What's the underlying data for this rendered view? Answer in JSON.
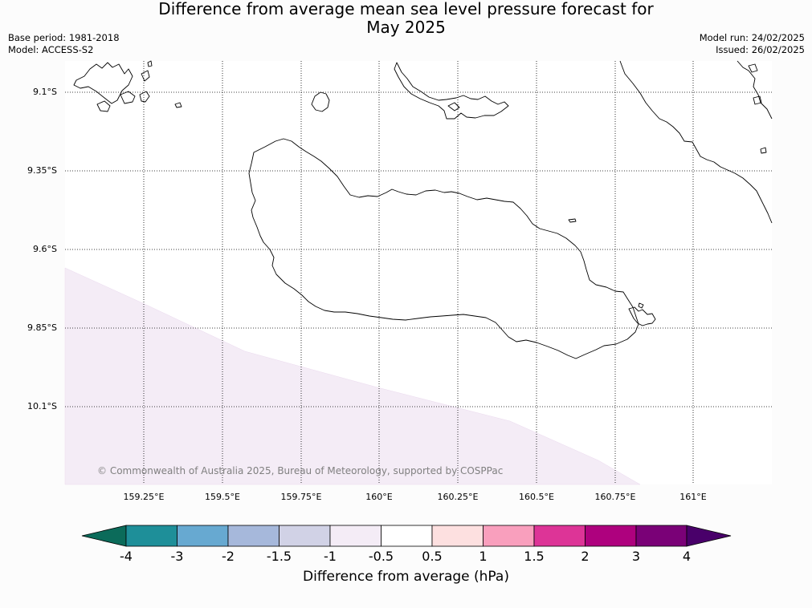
{
  "title_line1": "Difference from average mean sea level pressure forecast for",
  "title_line2": "May 2025",
  "base_period": "Base period: 1981-2018",
  "model": "Model: ACCESS-S2",
  "model_run": "Model run: 24/02/2025",
  "issued": "Issued: 26/02/2025",
  "lat_labels": [
    "9.1°S",
    "9.35°S",
    "9.6°S",
    "9.85°S",
    "10.1°S"
  ],
  "lon_labels": [
    "159.25°E",
    "159.5°E",
    "159.75°E",
    "160°E",
    "160.25°E",
    "160.5°E",
    "160.75°E",
    "161°E"
  ],
  "copyright": "© Commonwealth of Australia 2025, Bureau of Meteorology, supported by COSPPac",
  "colorbar": {
    "title": "Difference from average (hPa)",
    "ticks": [
      "-4",
      "-3",
      "-2",
      "-1.5",
      "-1",
      "-0.5",
      "0.5",
      "1",
      "1.5",
      "2",
      "3",
      "4"
    ],
    "colors": {
      "under": "#0b6b5a",
      "bins": [
        "#1e8f99",
        "#67a9d1",
        "#a6b8db",
        "#d1d2e6",
        "#f4ecf6",
        "#ffffff",
        "#fde0e0",
        "#f99fbd",
        "#dd3497",
        "#ae017e",
        "#7a0177"
      ],
      "over": "#49006a"
    }
  },
  "map": {
    "shaded_region_value_range": "-1 to -0.5",
    "shaded_region_color": "#f4ecf6",
    "features": [
      "Guadalcanal",
      "Florida Islands",
      "Savo Island",
      "Marau Sound",
      "Malaita"
    ]
  }
}
